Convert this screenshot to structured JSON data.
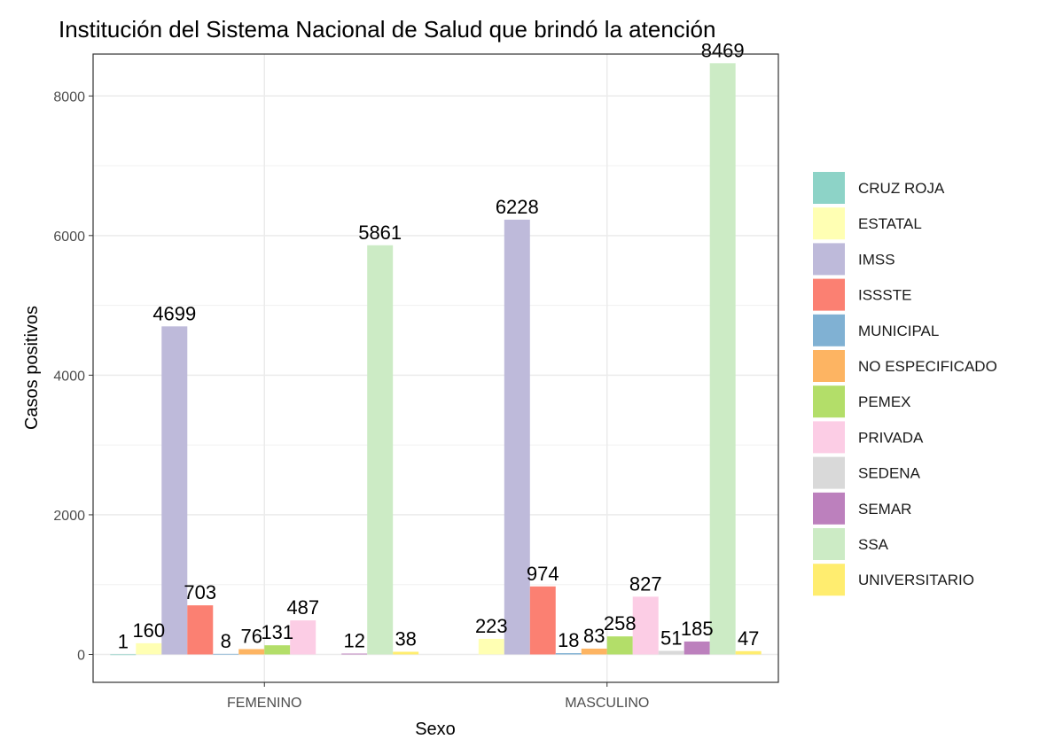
{
  "chart_data": {
    "type": "bar",
    "title": "Institución del Sistema Nacional de Salud que brindó la atención",
    "xlabel": "Sexo",
    "ylabel": "Casos positivos",
    "categories": [
      "FEMENINO",
      "MASCULINO"
    ],
    "ylim": [
      -400,
      8600
    ],
    "yticks": [
      0,
      2000,
      4000,
      6000,
      8000
    ],
    "grid": true,
    "legend_position": "right",
    "series": [
      {
        "name": "CRUZ ROJA",
        "color": "#8DD3C7",
        "values": [
          1,
          0
        ]
      },
      {
        "name": "ESTATAL",
        "color": "#FFFFB3",
        "values": [
          160,
          223
        ]
      },
      {
        "name": "IMSS",
        "color": "#BEBADA",
        "values": [
          4699,
          6228
        ]
      },
      {
        "name": "ISSSTE",
        "color": "#FB8072",
        "values": [
          703,
          974
        ]
      },
      {
        "name": "MUNICIPAL",
        "color": "#80B1D3",
        "values": [
          8,
          18
        ]
      },
      {
        "name": "NO ESPECIFICADO",
        "color": "#FDB462",
        "values": [
          76,
          83
        ]
      },
      {
        "name": "PEMEX",
        "color": "#B3DE69",
        "values": [
          131,
          258
        ]
      },
      {
        "name": "PRIVADA",
        "color": "#FCCDE5",
        "values": [
          487,
          827
        ]
      },
      {
        "name": "SEDENA",
        "color": "#D9D9D9",
        "values": [
          0,
          51
        ]
      },
      {
        "name": "SEMAR",
        "color": "#BC80BD",
        "values": [
          12,
          185
        ]
      },
      {
        "name": "SSA",
        "color": "#CCEBC5",
        "values": [
          5861,
          8469
        ]
      },
      {
        "name": "UNIVERSITARIO",
        "color": "#FFED6F",
        "values": [
          38,
          47
        ]
      }
    ],
    "value_labels": [
      [
        "1",
        null
      ],
      [
        "160",
        "223"
      ],
      [
        "4699",
        "6228"
      ],
      [
        "703",
        "974"
      ],
      [
        "8",
        "18"
      ],
      [
        "76",
        "83"
      ],
      [
        "131",
        "258"
      ],
      [
        "487",
        "827"
      ],
      [
        null,
        "51"
      ],
      [
        "12",
        "185"
      ],
      [
        "5861",
        "8469"
      ],
      [
        "38",
        "47"
      ]
    ]
  }
}
